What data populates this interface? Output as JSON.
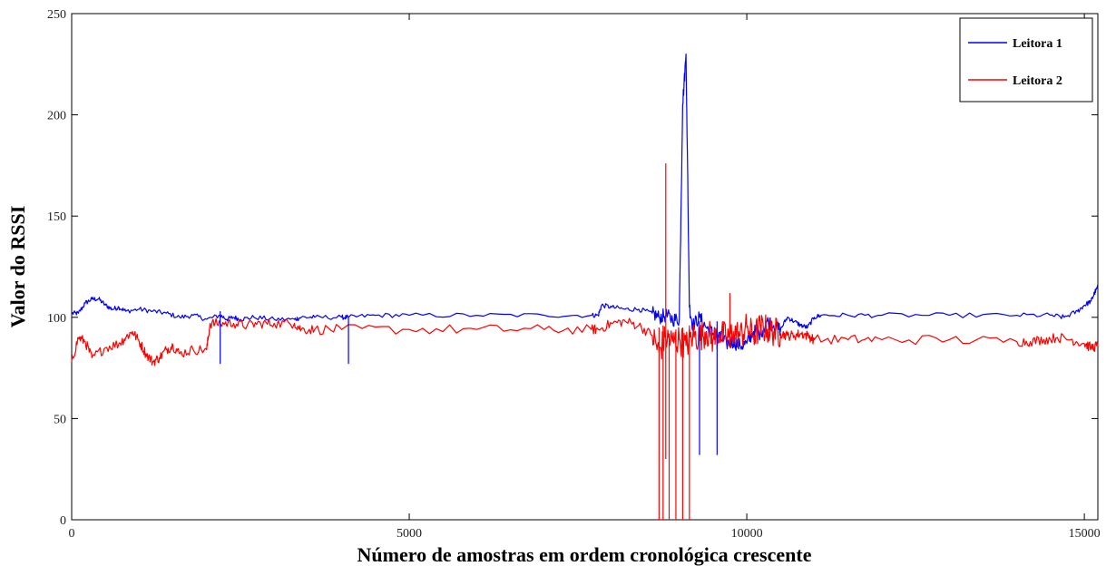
{
  "chart_data": {
    "type": "line",
    "xlabel": "Número de amostras em ordem cronológica crescente",
    "ylabel": "Valor do RSSI",
    "xlim": [
      0,
      15200
    ],
    "ylim": [
      0,
      250
    ],
    "x_ticks": [
      0,
      5000,
      10000,
      15000
    ],
    "y_ticks": [
      0,
      50,
      100,
      150,
      200,
      250
    ],
    "grid": false,
    "legend_position": "top-right",
    "series": [
      {
        "name": "Leitora 1",
        "color": "#0000ff",
        "x": [
          0,
          100,
          200,
          300,
          400,
          500,
          600,
          700,
          800,
          1000,
          1200,
          1400,
          1600,
          1800,
          2000,
          2200,
          2300,
          2400,
          2500,
          2700,
          3000,
          3300,
          3400,
          3600,
          4000,
          4100,
          4500,
          5000,
          6000,
          7000,
          7700,
          7800,
          7850,
          8000,
          8200,
          8400,
          8600,
          8700,
          8800,
          8900,
          9000,
          9050,
          9100,
          9150,
          9200,
          9300,
          9400,
          9500,
          9600,
          9700,
          9800,
          9900,
          10000,
          10100,
          10200,
          10300,
          10400,
          10500,
          10600,
          10700,
          10800,
          10900,
          11000,
          11100,
          11500,
          12000,
          13000,
          14000,
          14500,
          14700,
          14900,
          15000,
          15100,
          15150,
          15200
        ],
        "values": [
          102,
          102,
          107,
          109,
          109,
          106,
          104,
          105,
          103,
          104,
          103,
          102,
          100,
          101,
          99,
          101,
          99,
          100,
          99,
          100,
          99,
          99,
          100,
          100,
          100,
          100,
          101,
          101,
          101,
          101,
          101,
          101,
          106,
          105,
          104,
          104,
          102,
          100,
          101,
          99,
          99,
          205,
          230,
          105,
          96,
          100,
          95,
          92,
          90,
          87,
          88,
          86,
          87,
          93,
          92,
          98,
          96,
          94,
          100,
          98,
          96,
          95,
          100,
          101,
          101,
          101,
          101,
          101,
          101,
          100,
          103,
          106,
          108,
          112,
          115
        ]
      },
      {
        "name": "Leitora 2",
        "color": "#ff0000",
        "x": [
          0,
          100,
          200,
          300,
          500,
          700,
          800,
          900,
          1000,
          1100,
          1200,
          1300,
          1400,
          1500,
          1600,
          1800,
          2000,
          2050,
          2200,
          2400,
          2600,
          2800,
          3000,
          3300,
          3400,
          3600,
          4000,
          5000,
          6000,
          7000,
          7700,
          7800,
          8000,
          8200,
          8400,
          8600,
          8700,
          8800,
          8900,
          9000,
          9100,
          9200,
          9300,
          9400,
          9500,
          9600,
          9700,
          9800,
          9900,
          10000,
          10100,
          10200,
          10300,
          10400,
          10500,
          10600,
          10700,
          10800,
          10900,
          11000,
          11500,
          12000,
          13000,
          14000,
          14200,
          14400,
          14600,
          14800,
          15000,
          15100,
          15200
        ],
        "values": [
          78,
          90,
          88,
          80,
          85,
          87,
          90,
          93,
          88,
          82,
          78,
          80,
          84,
          86,
          82,
          84,
          84,
          97,
          97,
          97,
          96,
          97,
          97,
          97,
          94,
          94,
          94,
          94,
          94,
          94,
          94,
          94,
          97,
          98,
          96,
          91,
          83,
          90,
          88,
          89,
          86,
          91,
          90,
          93,
          89,
          92,
          90,
          93,
          91,
          95,
          91,
          95,
          94,
          93,
          92,
          91,
          91,
          92,
          91,
          89,
          89,
          89,
          89,
          88,
          88,
          89,
          90,
          89,
          87,
          85,
          86
        ]
      }
    ]
  }
}
